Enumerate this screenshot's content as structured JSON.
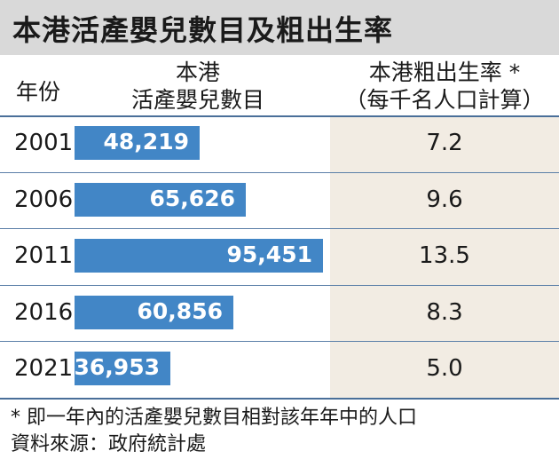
{
  "title": "本港活產嬰兒數目及粗出生率",
  "header": {
    "year": "年份",
    "births_line1": "本港",
    "births_line2": "活產嬰兒數目",
    "rate_line1": "本港粗出生率 *",
    "rate_line2": "（每千名人口計算）"
  },
  "colors": {
    "bar": "#4286c6",
    "title_bg": "#d9d9d9",
    "rate_bg": "#f2ece3",
    "rule": "#5b7fa8"
  },
  "chart_data": {
    "type": "bar",
    "orientation": "horizontal",
    "categories": [
      "2001",
      "2006",
      "2011",
      "2016",
      "2021"
    ],
    "series": [
      {
        "name": "本港活產嬰兒數目",
        "values": [
          48219,
          65626,
          95451,
          60856,
          36953
        ],
        "labels": [
          "48,219",
          "65,626",
          "95,451",
          "60,856",
          "36,953"
        ]
      },
      {
        "name": "本港粗出生率",
        "values": [
          7.2,
          9.6,
          13.5,
          8.3,
          5.0
        ],
        "labels": [
          "7.2",
          "9.6",
          "13.5",
          "8.3",
          "5.0"
        ]
      }
    ]
  },
  "footnote": {
    "line1": "* 即一年內的活產嬰兒數目相對該年年中的人口",
    "line2": "資料來源：政府統計處"
  }
}
